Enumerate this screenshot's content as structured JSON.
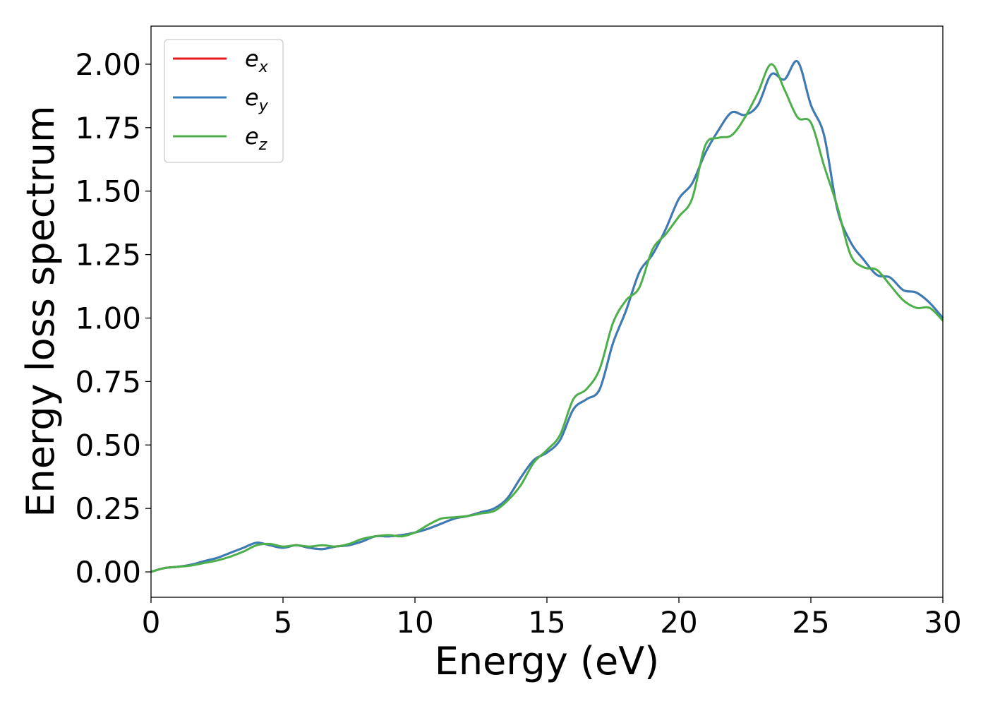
{
  "chart_data": {
    "type": "line",
    "xlabel": "Energy (eV)",
    "ylabel": "Energy loss spectrum",
    "xlim": [
      0,
      30
    ],
    "ylim": [
      -0.1,
      2.15
    ],
    "xticks": [
      0,
      5,
      10,
      15,
      20,
      25,
      30
    ],
    "xtick_labels": [
      "0",
      "5",
      "10",
      "15",
      "20",
      "25",
      "30"
    ],
    "yticks": [
      0,
      0.25,
      0.5,
      0.75,
      1.0,
      1.25,
      1.5,
      1.75,
      2.0
    ],
    "ytick_labels": [
      "0.00",
      "0.25",
      "0.50",
      "0.75",
      "1.00",
      "1.25",
      "1.50",
      "1.75",
      "2.00"
    ],
    "grid": false,
    "legend_position": "top-left",
    "x": [
      0,
      0.5,
      1,
      1.5,
      2,
      2.5,
      3,
      3.5,
      4,
      4.5,
      5,
      5.5,
      6,
      6.5,
      7,
      7.5,
      8,
      8.5,
      9,
      9.5,
      10,
      10.5,
      11,
      11.5,
      12,
      12.5,
      13,
      13.5,
      14,
      14.5,
      15,
      15.5,
      16,
      16.5,
      17,
      17.5,
      18,
      18.5,
      19,
      19.5,
      20,
      20.5,
      21,
      21.5,
      22,
      22.5,
      23,
      23.5,
      24,
      24.5,
      25,
      25.5,
      26,
      26.5,
      27,
      27.5,
      28,
      28.5,
      29,
      29.5,
      30
    ],
    "series": [
      {
        "name": "e",
        "subscript": "x",
        "color": "#e41a1c",
        "values": [
          0.0,
          0.015,
          0.02,
          0.028,
          0.042,
          0.055,
          0.075,
          0.095,
          0.115,
          0.105,
          0.095,
          0.105,
          0.095,
          0.09,
          0.1,
          0.105,
          0.12,
          0.14,
          0.14,
          0.145,
          0.155,
          0.17,
          0.19,
          0.21,
          0.22,
          0.235,
          0.25,
          0.29,
          0.37,
          0.44,
          0.47,
          0.52,
          0.64,
          0.68,
          0.72,
          0.9,
          1.03,
          1.18,
          1.25,
          1.35,
          1.47,
          1.53,
          1.65,
          1.74,
          1.81,
          1.8,
          1.84,
          1.96,
          1.94,
          2.01,
          1.84,
          1.72,
          1.43,
          1.3,
          1.23,
          1.17,
          1.16,
          1.11,
          1.1,
          1.06,
          1.0
        ]
      },
      {
        "name": "e",
        "subscript": "y",
        "color": "#377eb8",
        "values": [
          0.0,
          0.015,
          0.02,
          0.028,
          0.042,
          0.055,
          0.075,
          0.095,
          0.115,
          0.105,
          0.095,
          0.105,
          0.095,
          0.09,
          0.1,
          0.105,
          0.12,
          0.14,
          0.14,
          0.145,
          0.155,
          0.17,
          0.19,
          0.21,
          0.22,
          0.235,
          0.25,
          0.29,
          0.37,
          0.44,
          0.47,
          0.52,
          0.64,
          0.68,
          0.72,
          0.9,
          1.03,
          1.18,
          1.25,
          1.35,
          1.47,
          1.53,
          1.65,
          1.74,
          1.81,
          1.8,
          1.84,
          1.96,
          1.94,
          2.01,
          1.84,
          1.72,
          1.43,
          1.3,
          1.23,
          1.17,
          1.16,
          1.11,
          1.1,
          1.06,
          1.0
        ]
      },
      {
        "name": "e",
        "subscript": "z",
        "color": "#4daf4a",
        "values": [
          0.0,
          0.015,
          0.02,
          0.025,
          0.035,
          0.045,
          0.06,
          0.08,
          0.105,
          0.11,
          0.1,
          0.105,
          0.1,
          0.105,
          0.1,
          0.11,
          0.13,
          0.14,
          0.145,
          0.14,
          0.155,
          0.185,
          0.21,
          0.215,
          0.22,
          0.23,
          0.24,
          0.28,
          0.34,
          0.43,
          0.48,
          0.54,
          0.68,
          0.72,
          0.8,
          0.98,
          1.07,
          1.12,
          1.27,
          1.33,
          1.4,
          1.47,
          1.68,
          1.71,
          1.72,
          1.79,
          1.89,
          2.0,
          1.9,
          1.79,
          1.77,
          1.6,
          1.44,
          1.25,
          1.2,
          1.19,
          1.13,
          1.07,
          1.04,
          1.04,
          0.99
        ]
      }
    ]
  }
}
